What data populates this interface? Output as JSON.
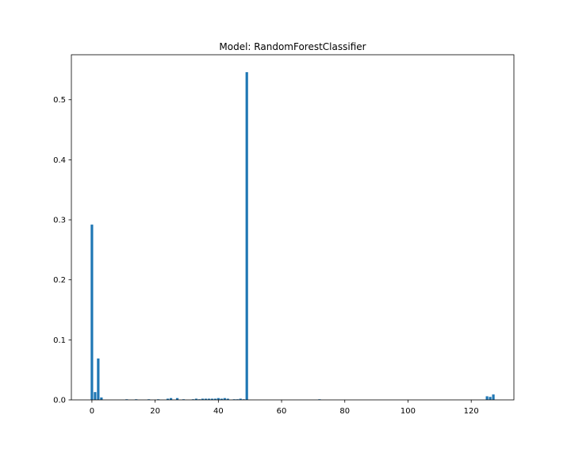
{
  "chart_data": {
    "type": "bar",
    "title": "Model: RandomForestClassifier",
    "xlabel": "",
    "ylabel": "",
    "xlim": [
      -6.5,
      133.5
    ],
    "ylim": [
      0,
      0.575
    ],
    "grid": false,
    "bar_color": "#1f77b4",
    "bar_width": 0.8,
    "x_ticks": [
      0,
      20,
      40,
      60,
      80,
      100,
      120
    ],
    "x_tick_labels": [
      "0",
      "20",
      "40",
      "60",
      "80",
      "100",
      "120"
    ],
    "y_ticks": [
      0.0,
      0.1,
      0.2,
      0.3,
      0.4,
      0.5
    ],
    "y_tick_labels": [
      "0.0",
      "0.1",
      "0.2",
      "0.3",
      "0.4",
      "0.5"
    ],
    "x": [
      0,
      1,
      2,
      3,
      11,
      14,
      18,
      21,
      24,
      25,
      27,
      29,
      32,
      33,
      34,
      35,
      36,
      37,
      38,
      39,
      40,
      41,
      42,
      43,
      45,
      46,
      47,
      48,
      49,
      72,
      125,
      126,
      127
    ],
    "values": [
      0.292,
      0.013,
      0.069,
      0.004,
      0.001,
      0.001,
      0.001,
      0.001,
      0.002,
      0.003,
      0.003,
      0.001,
      0.001,
      0.002,
      0.001,
      0.002,
      0.002,
      0.002,
      0.002,
      0.002,
      0.003,
      0.002,
      0.003,
      0.002,
      0.001,
      0.001,
      0.002,
      0.001,
      0.546,
      0.001,
      0.006,
      0.005,
      0.009
    ]
  }
}
